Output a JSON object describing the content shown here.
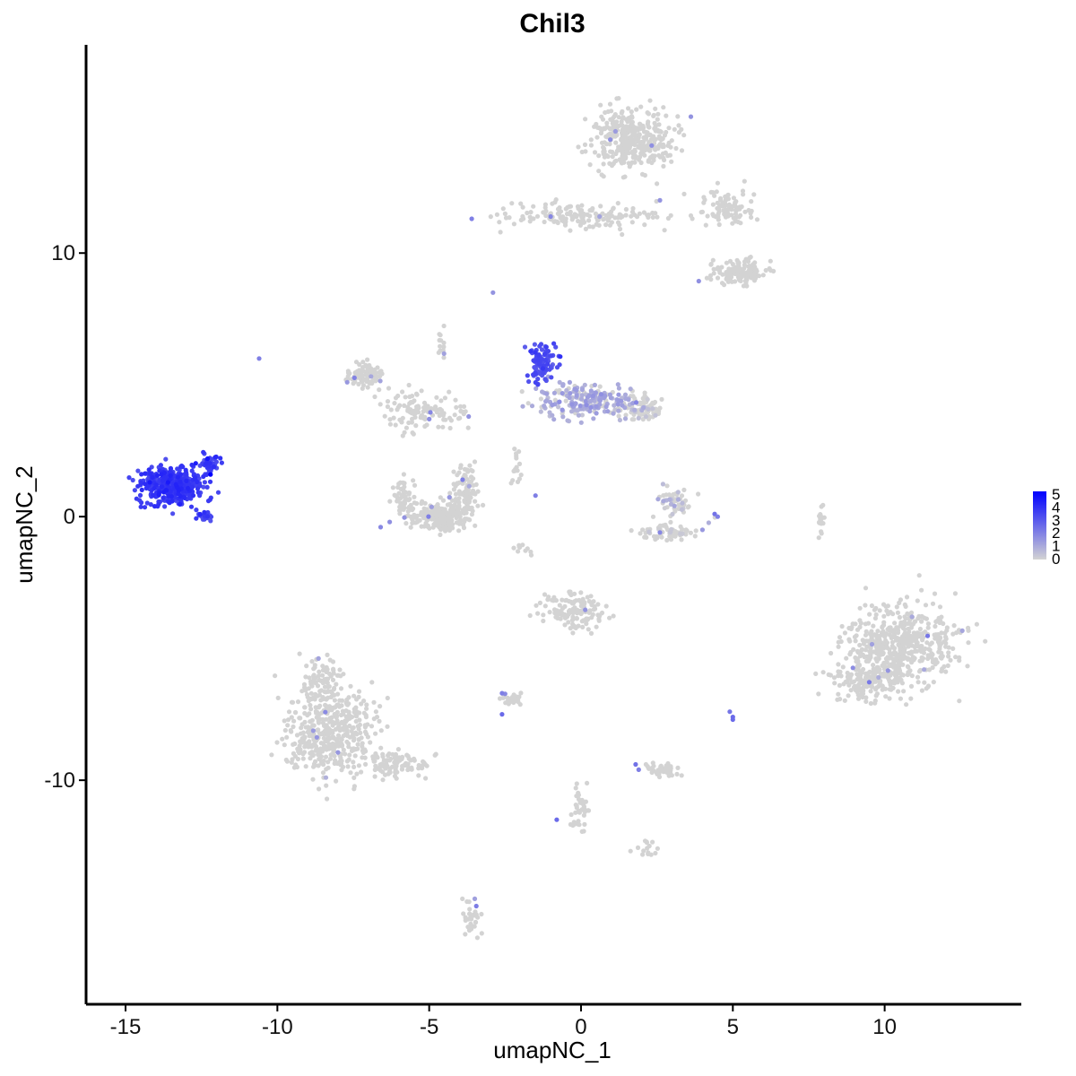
{
  "colors": {
    "low": "#d3d3d3",
    "high": "#0000ff",
    "axis": "#000000"
  },
  "chart_data": {
    "type": "scatter",
    "title": "Chil3",
    "xlabel": "umapNC_1",
    "ylabel": "umapNC_2",
    "xlim": [
      -16.3,
      14.5
    ],
    "ylim": [
      -18.5,
      17.9
    ],
    "xticks": [
      -15,
      -10,
      -5,
      0,
      5,
      10
    ],
    "xtick_labels": [
      "-15",
      "-10",
      "-5",
      "0",
      "5",
      "10"
    ],
    "yticks": [
      10,
      0,
      -10
    ],
    "ytick_labels": [
      "10",
      "0",
      "-10"
    ],
    "grid": false,
    "legend": {
      "position": "right",
      "type": "colorbar",
      "range": [
        0,
        5
      ],
      "ticks": [
        5,
        4,
        3,
        2,
        1,
        0
      ],
      "labels": [
        "5",
        "4",
        "3",
        "2",
        "1",
        "0"
      ]
    },
    "clusters": [
      {
        "cx": -13.5,
        "cy": 1.2,
        "sx": 0.9,
        "sy": 0.6,
        "n": 420,
        "expr": 3.6
      },
      {
        "cx": -12.2,
        "cy": 2.0,
        "sx": 0.35,
        "sy": 0.35,
        "n": 40,
        "expr": 3.4
      },
      {
        "cx": -12.4,
        "cy": 0.0,
        "sx": 0.25,
        "sy": 0.15,
        "n": 20,
        "expr": 3.4
      },
      {
        "cx": -1.3,
        "cy": 5.8,
        "sx": 0.35,
        "sy": 0.6,
        "n": 110,
        "expr": 3.1
      },
      {
        "cx": 0.2,
        "cy": 4.4,
        "sx": 1.4,
        "sy": 0.55,
        "n": 220,
        "expr": 1.0
      },
      {
        "cx": 2.1,
        "cy": 4.1,
        "sx": 0.6,
        "sy": 0.35,
        "n": 80,
        "expr": 0.3
      },
      {
        "cx": 1.7,
        "cy": 14.3,
        "sx": 1.1,
        "sy": 1.0,
        "n": 380,
        "expr": 0
      },
      {
        "cx": 0.0,
        "cy": 11.4,
        "sx": 2.2,
        "sy": 0.45,
        "n": 160,
        "expr": 0
      },
      {
        "cx": 5.2,
        "cy": 9.3,
        "sx": 0.8,
        "sy": 0.45,
        "n": 130,
        "expr": 0
      },
      {
        "cx": 4.8,
        "cy": 11.8,
        "sx": 0.8,
        "sy": 0.6,
        "n": 90,
        "expr": 0
      },
      {
        "cx": -7.1,
        "cy": 5.4,
        "sx": 0.5,
        "sy": 0.4,
        "n": 90,
        "expr": 0
      },
      {
        "cx": -5.2,
        "cy": 4.0,
        "sx": 1.2,
        "sy": 0.6,
        "n": 120,
        "expr": 0
      },
      {
        "cx": -4.7,
        "cy": 0.0,
        "sx": 0.9,
        "sy": 0.45,
        "n": 220,
        "expr": 0
      },
      {
        "cx": -3.8,
        "cy": 1.0,
        "sx": 0.35,
        "sy": 0.9,
        "n": 90,
        "expr": 0
      },
      {
        "cx": -5.8,
        "cy": 0.7,
        "sx": 0.35,
        "sy": 0.7,
        "n": 60,
        "expr": 0
      },
      {
        "cx": 3.1,
        "cy": 0.6,
        "sx": 0.45,
        "sy": 0.45,
        "n": 60,
        "expr": 0.4
      },
      {
        "cx": 2.9,
        "cy": -0.6,
        "sx": 0.9,
        "sy": 0.3,
        "n": 60,
        "expr": 0.3
      },
      {
        "cx": 10.5,
        "cy": -4.8,
        "sx": 1.4,
        "sy": 1.4,
        "n": 520,
        "expr": 0
      },
      {
        "cx": 9.4,
        "cy": -6.3,
        "sx": 0.9,
        "sy": 0.6,
        "n": 150,
        "expr": 0
      },
      {
        "cx": -8.3,
        "cy": -8.3,
        "sx": 1.3,
        "sy": 1.4,
        "n": 420,
        "expr": 0
      },
      {
        "cx": -8.5,
        "cy": -6.3,
        "sx": 0.6,
        "sy": 0.8,
        "n": 90,
        "expr": 0
      },
      {
        "cx": -6.2,
        "cy": -9.4,
        "sx": 1.1,
        "sy": 0.45,
        "n": 100,
        "expr": 0
      },
      {
        "cx": -0.3,
        "cy": -3.6,
        "sx": 0.9,
        "sy": 0.6,
        "n": 130,
        "expr": 0
      },
      {
        "cx": 2.6,
        "cy": -9.6,
        "sx": 0.5,
        "sy": 0.2,
        "n": 45,
        "expr": 0
      },
      {
        "cx": -2.3,
        "cy": -6.9,
        "sx": 0.35,
        "sy": 0.2,
        "n": 30,
        "expr": 0
      },
      {
        "cx": 0.0,
        "cy": -11.0,
        "sx": 0.3,
        "sy": 0.8,
        "n": 40,
        "expr": 0
      },
      {
        "cx": 2.2,
        "cy": -12.6,
        "sx": 0.3,
        "sy": 0.2,
        "n": 15,
        "expr": 0
      },
      {
        "cx": -3.6,
        "cy": -15.2,
        "sx": 0.25,
        "sy": 0.6,
        "n": 35,
        "expr": 0
      },
      {
        "cx": 7.9,
        "cy": -0.2,
        "sx": 0.1,
        "sy": 0.6,
        "n": 18,
        "expr": 0
      },
      {
        "cx": -4.6,
        "cy": 6.5,
        "sx": 0.1,
        "sy": 0.6,
        "n": 14,
        "expr": 0
      },
      {
        "cx": -2.1,
        "cy": 2.1,
        "sx": 0.2,
        "sy": 0.8,
        "n": 16,
        "expr": 0
      },
      {
        "cx": -1.8,
        "cy": -1.2,
        "sx": 0.3,
        "sy": 0.2,
        "n": 10,
        "expr": 0
      }
    ],
    "highlights": [
      {
        "x": 4.9,
        "y": -7.4,
        "value": 2.2
      },
      {
        "x": 5.0,
        "y": -7.6,
        "value": 2.5
      },
      {
        "x": 5.0,
        "y": -7.7,
        "value": 2.5
      },
      {
        "x": 1.8,
        "y": -9.4,
        "value": 2.3
      },
      {
        "x": 1.9,
        "y": -9.6,
        "value": 2.0
      },
      {
        "x": -2.6,
        "y": -7.5,
        "value": 2.5
      },
      {
        "x": -2.6,
        "y": -6.7,
        "value": 2.0
      },
      {
        "x": -0.8,
        "y": -11.5,
        "value": 2.5
      },
      {
        "x": 4.4,
        "y": 0.1,
        "value": 2.3
      },
      {
        "x": 4.5,
        "y": 0.0,
        "value": 2.0
      },
      {
        "x": -12.2,
        "y": 1.6,
        "value": 5.0
      },
      {
        "x": -12.3,
        "y": 2.2,
        "value": 4.5
      },
      {
        "x": -10.6,
        "y": 6.0,
        "value": 2.0
      },
      {
        "x": -3.6,
        "y": 11.3,
        "value": 2.0
      },
      {
        "x": -2.9,
        "y": 8.5,
        "value": 1.5
      },
      {
        "x": -1.5,
        "y": 0.8,
        "value": 2.0
      },
      {
        "x": -6.6,
        "y": -0.4,
        "value": 1.8
      },
      {
        "x": -3.9,
        "y": 1.4,
        "value": 2.0
      },
      {
        "x": -5.0,
        "y": 3.7,
        "value": 1.6
      },
      {
        "x": -3.7,
        "y": 3.8,
        "value": 1.5
      },
      {
        "x": 2.6,
        "y": 12.0,
        "value": 1.5
      },
      {
        "x": 10.9,
        "y": -3.8,
        "value": 1.0
      },
      {
        "x": 11.3,
        "y": -5.8,
        "value": 1.0
      },
      {
        "x": 9.8,
        "y": -6.1,
        "value": 0.9
      },
      {
        "x": -8.4,
        "y": -9.9,
        "value": 0.8
      },
      {
        "x": -3.5,
        "y": -14.5,
        "value": 1.2
      },
      {
        "x": -6.3,
        "y": -0.2,
        "value": 1.6
      },
      {
        "x": -7.7,
        "y": 5.1,
        "value": 1.4
      },
      {
        "x": 2.6,
        "y": -0.6,
        "value": 1.8
      },
      {
        "x": 4.0,
        "y": -0.5,
        "value": 1.4
      }
    ]
  }
}
